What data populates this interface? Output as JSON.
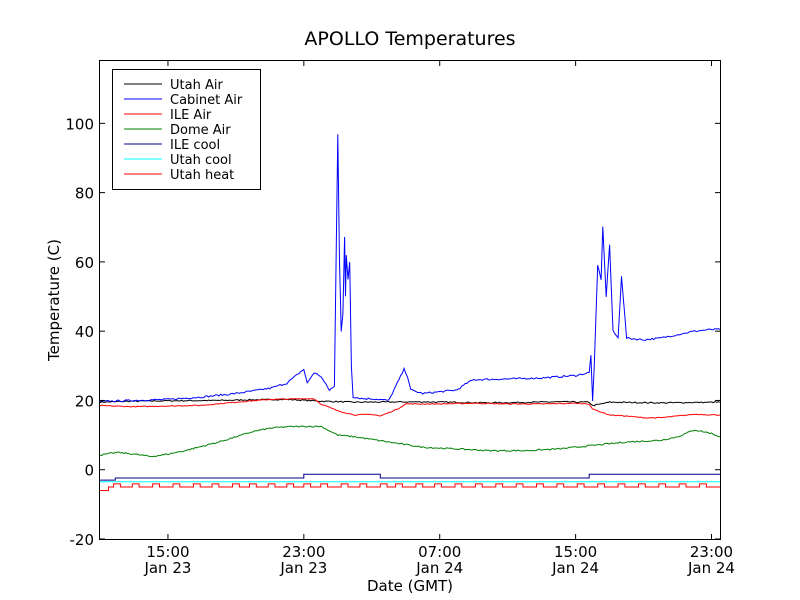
{
  "chart_data": {
    "type": "line",
    "title": "APOLLO Temperatures",
    "xlabel": "Date (GMT)",
    "ylabel": "Temperature (C)",
    "xlim": [
      11.0,
      47.5
    ],
    "ylim": [
      -20,
      118
    ],
    "yticks": [
      -20,
      0,
      20,
      40,
      60,
      80,
      100
    ],
    "xticks": [
      {
        "x": 15,
        "time": "15:00",
        "date": "Jan 23"
      },
      {
        "x": 23,
        "time": "23:00",
        "date": "Jan 23"
      },
      {
        "x": 31,
        "time": "07:00",
        "date": "Jan 24"
      },
      {
        "x": 39,
        "time": "15:00",
        "date": "Jan 24"
      },
      {
        "x": 47,
        "time": "23:00",
        "date": "Jan 24"
      }
    ],
    "legend_position": "top-left",
    "series": [
      {
        "name": "Utah Air",
        "color": "#000000",
        "noise": 0.35,
        "points": [
          [
            11,
            19.5
          ],
          [
            13,
            19.8
          ],
          [
            15,
            19.9
          ],
          [
            18,
            20
          ],
          [
            20,
            20.2
          ],
          [
            22,
            20.3
          ],
          [
            24,
            19.8
          ],
          [
            26,
            19.5
          ],
          [
            30,
            19.6
          ],
          [
            34,
            19.3
          ],
          [
            38,
            19.6
          ],
          [
            39.8,
            19.5
          ],
          [
            40,
            18.5
          ],
          [
            41,
            19.5
          ],
          [
            44,
            19.3
          ],
          [
            47.5,
            19.5
          ]
        ]
      },
      {
        "name": "Cabinet Air",
        "color": "#0000ff",
        "noise": 0.5,
        "points": [
          [
            11,
            19.7
          ],
          [
            13,
            20
          ],
          [
            15,
            20.3
          ],
          [
            17,
            21
          ],
          [
            19,
            22
          ],
          [
            21,
            23.5
          ],
          [
            22,
            25
          ],
          [
            23,
            29
          ],
          [
            23.2,
            25
          ],
          [
            23.6,
            28
          ],
          [
            24,
            27
          ],
          [
            24.5,
            23
          ],
          [
            24.8,
            24
          ],
          [
            25,
            97
          ],
          [
            25.1,
            60
          ],
          [
            25.15,
            50
          ],
          [
            25.2,
            40
          ],
          [
            25.3,
            45
          ],
          [
            25.4,
            67
          ],
          [
            25.45,
            50
          ],
          [
            25.5,
            62
          ],
          [
            25.6,
            55
          ],
          [
            25.7,
            60
          ],
          [
            25.8,
            30
          ],
          [
            25.9,
            21
          ],
          [
            26.5,
            20.5
          ],
          [
            27,
            20.5
          ],
          [
            28,
            20
          ],
          [
            28.2,
            22
          ],
          [
            28.6,
            26
          ],
          [
            28.9,
            29
          ],
          [
            29.1,
            27
          ],
          [
            29.3,
            23
          ],
          [
            30,
            22
          ],
          [
            31,
            22.5
          ],
          [
            32,
            23
          ],
          [
            32.6,
            25
          ],
          [
            33,
            26
          ],
          [
            35,
            26.2
          ],
          [
            37,
            26.5
          ],
          [
            39,
            27.2
          ],
          [
            39.8,
            28
          ],
          [
            39.9,
            33
          ],
          [
            40,
            20
          ],
          [
            40.1,
            30
          ],
          [
            40.3,
            59
          ],
          [
            40.5,
            55
          ],
          [
            40.6,
            70
          ],
          [
            40.8,
            50
          ],
          [
            41,
            65
          ],
          [
            41.2,
            40
          ],
          [
            41.5,
            38
          ],
          [
            41.7,
            56
          ],
          [
            42,
            38
          ],
          [
            43,
            37.5
          ],
          [
            44,
            38
          ],
          [
            45,
            39
          ],
          [
            46,
            40
          ],
          [
            47,
            40.5
          ],
          [
            47.5,
            40.5
          ]
        ]
      },
      {
        "name": "ILE Air",
        "color": "#ff0000",
        "noise": 0.25,
        "points": [
          [
            11,
            18.5
          ],
          [
            13,
            18.2
          ],
          [
            15,
            18.4
          ],
          [
            17,
            18.6
          ],
          [
            19,
            19.5
          ],
          [
            21,
            20.3
          ],
          [
            23,
            20.5
          ],
          [
            23.6,
            20.5
          ],
          [
            24,
            19
          ],
          [
            25,
            17
          ],
          [
            26,
            15.8
          ],
          [
            27,
            16
          ],
          [
            27.5,
            15.5
          ],
          [
            28.5,
            17.5
          ],
          [
            29,
            19
          ],
          [
            31,
            19
          ],
          [
            33,
            19.2
          ],
          [
            35,
            19
          ],
          [
            37,
            19
          ],
          [
            39,
            19.2
          ],
          [
            39.8,
            19
          ],
          [
            40,
            17.5
          ],
          [
            41,
            15.8
          ],
          [
            42,
            15.5
          ],
          [
            43,
            15
          ],
          [
            44,
            15
          ],
          [
            45,
            15.5
          ],
          [
            46,
            16
          ],
          [
            47.5,
            15.8
          ]
        ]
      },
      {
        "name": "Dome Air",
        "color": "#008000",
        "noise": 0.4,
        "points": [
          [
            11,
            4.2
          ],
          [
            12,
            5
          ],
          [
            13,
            4.5
          ],
          [
            14,
            3.8
          ],
          [
            15,
            4.5
          ],
          [
            16,
            5.5
          ],
          [
            18,
            8
          ],
          [
            20,
            11
          ],
          [
            21,
            12
          ],
          [
            22,
            12.4
          ],
          [
            23,
            12.5
          ],
          [
            24,
            12.5
          ],
          [
            25,
            10
          ],
          [
            26,
            9.5
          ],
          [
            28,
            8
          ],
          [
            30,
            6.5
          ],
          [
            32,
            6
          ],
          [
            34,
            5.5
          ],
          [
            36,
            5.5
          ],
          [
            38,
            6
          ],
          [
            40,
            7
          ],
          [
            42,
            8
          ],
          [
            44,
            8.5
          ],
          [
            45,
            9.5
          ],
          [
            46,
            11.5
          ],
          [
            47,
            10.5
          ],
          [
            47.5,
            9.5
          ]
        ]
      },
      {
        "name": "ILE cool",
        "color": "#00008b",
        "noise": 0,
        "points": [
          [
            11,
            -3
          ],
          [
            11.9,
            -3
          ],
          [
            11.9,
            -2.4
          ],
          [
            23,
            -2.4
          ],
          [
            23,
            -1.3
          ],
          [
            27.5,
            -1.3
          ],
          [
            27.5,
            -2.4
          ],
          [
            39.8,
            -2.4
          ],
          [
            39.8,
            -1.3
          ],
          [
            47.5,
            -1.3
          ]
        ]
      },
      {
        "name": "Utah cool",
        "color": "#00ffff",
        "noise": 0,
        "points": [
          [
            11,
            -3.5
          ],
          [
            47.5,
            -3.5
          ]
        ]
      },
      {
        "name": "Utah heat",
        "color": "#ff0000",
        "noise": 0,
        "pulses": {
          "base": -6,
          "low": -5,
          "high": -4.1,
          "intervals": [
            [
              11.8,
              12.2
            ],
            [
              12.9,
              13.3
            ],
            [
              14.1,
              14.5
            ],
            [
              15.3,
              15.7
            ],
            [
              16.5,
              16.9
            ],
            [
              17.6,
              18.0
            ],
            [
              18.8,
              19.2
            ],
            [
              19.8,
              20.2
            ],
            [
              20.9,
              21.3
            ],
            [
              22.0,
              22.4
            ],
            [
              23.0,
              23.4
            ],
            [
              24.0,
              24.4
            ],
            [
              25.2,
              25.6
            ],
            [
              26.3,
              26.7
            ],
            [
              27.5,
              27.9
            ],
            [
              28.4,
              28.8
            ],
            [
              29.6,
              30.0
            ],
            [
              30.7,
              31.1
            ],
            [
              31.9,
              32.3
            ],
            [
              33.1,
              33.5
            ],
            [
              34.3,
              34.7
            ],
            [
              35.5,
              35.9
            ],
            [
              36.7,
              37.1
            ],
            [
              37.9,
              38.3
            ],
            [
              39.1,
              39.5
            ],
            [
              40.3,
              40.7
            ],
            [
              41.5,
              41.9
            ],
            [
              42.7,
              43.1
            ],
            [
              43.9,
              44.3
            ],
            [
              45.1,
              45.5
            ],
            [
              46.3,
              46.7
            ]
          ]
        }
      }
    ]
  }
}
